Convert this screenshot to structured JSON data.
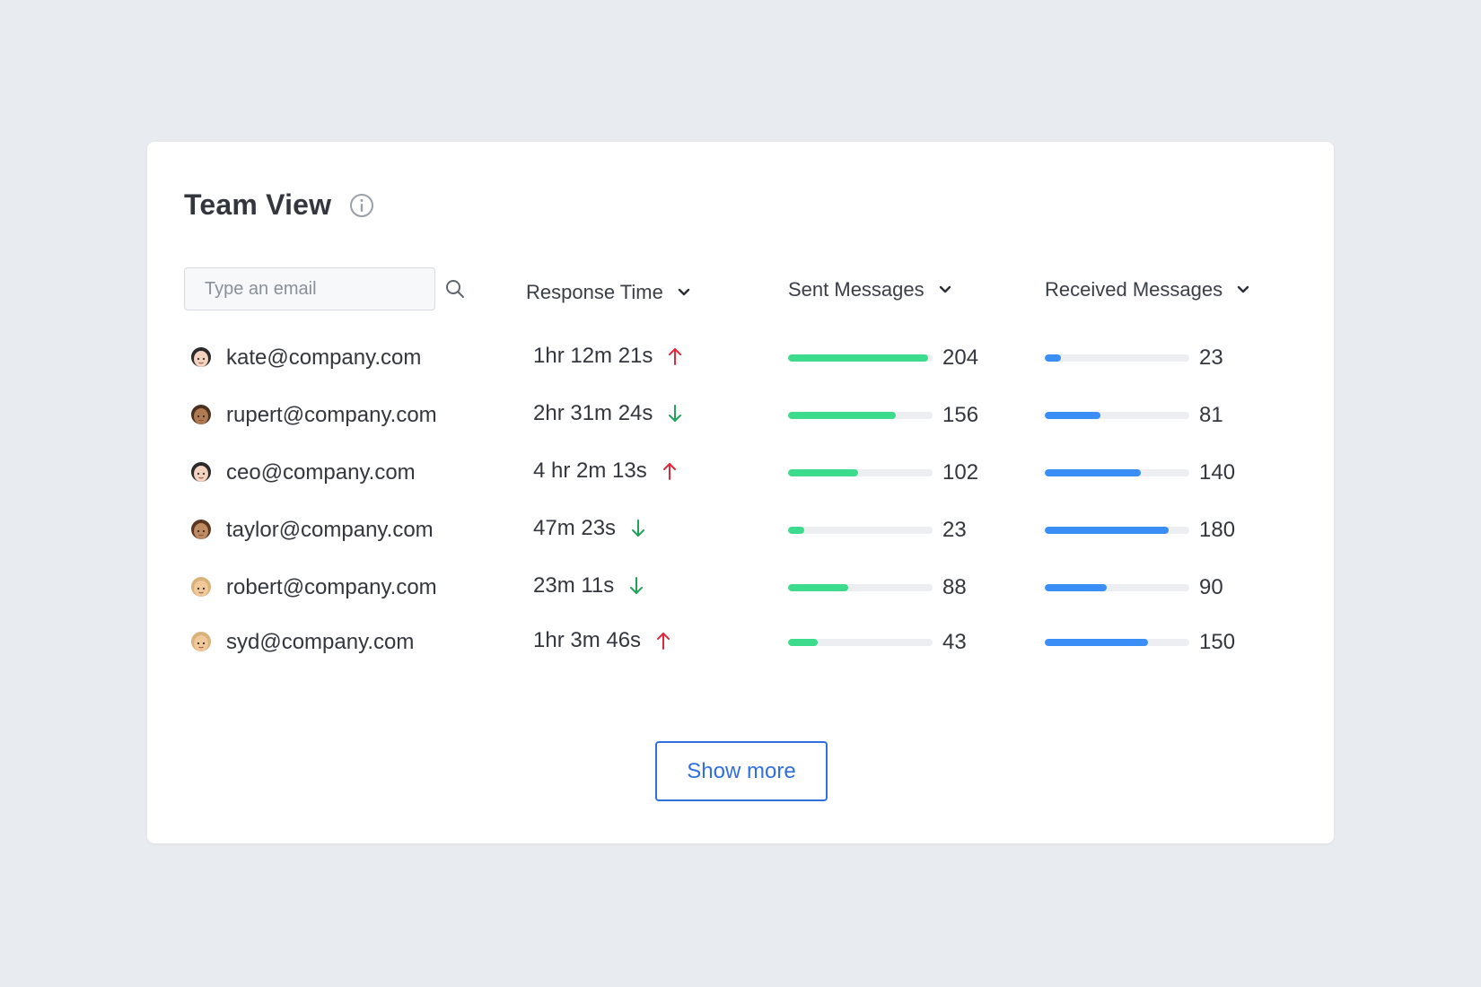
{
  "header": {
    "title": "Team View",
    "info_icon": "info-circle-icon"
  },
  "search": {
    "placeholder": "Type an email",
    "value": "",
    "icon": "search-icon"
  },
  "columns": [
    {
      "label": "Response Time",
      "icon": "chevron-down-icon"
    },
    {
      "label": "Sent Messages",
      "icon": "chevron-down-icon"
    },
    {
      "label": "Received Messages",
      "icon": "chevron-down-icon"
    }
  ],
  "bar_max": 210,
  "colors": {
    "sent_bar": "#3ddc8c",
    "received_bar": "#3b8ef5",
    "trend_up": "#e0283c",
    "trend_down": "#1fa35a",
    "link": "#2f6fe0"
  },
  "rows": [
    {
      "email": "kate@company.com",
      "avatar": "woman-avatar",
      "skin": "#f3d3bf",
      "hair": "#2a2a2a",
      "response_time": "1hr 12m 21s",
      "trend": "up",
      "sent": 204,
      "received": 23
    },
    {
      "email": "rupert@company.com",
      "avatar": "man-avatar",
      "skin": "#b07a52",
      "hair": "#4a3020",
      "response_time": "2hr 31m 24s",
      "trend": "down",
      "sent": 156,
      "received": 81
    },
    {
      "email": "ceo@company.com",
      "avatar": "woman-avatar",
      "skin": "#f3d3bf",
      "hair": "#2a2a2a",
      "response_time": "4 hr 2m 13s",
      "trend": "up",
      "sent": 102,
      "received": 140
    },
    {
      "email": "taylor@company.com",
      "avatar": "woman-avatar",
      "skin": "#c08a62",
      "hair": "#5a3520",
      "response_time": "47m 23s",
      "trend": "down",
      "sent": 23,
      "received": 180
    },
    {
      "email": "robert@company.com",
      "avatar": "man-avatar",
      "skin": "#f1c89a",
      "hair": "#d9b27a",
      "response_time": "23m 11s",
      "trend": "down",
      "sent": 88,
      "received": 90
    },
    {
      "email": "syd@company.com",
      "avatar": "woman-avatar",
      "skin": "#f1c89a",
      "hair": "#d9b27a",
      "response_time": "1hr 3m 46s",
      "trend": "up",
      "sent": 43,
      "received": 150
    }
  ],
  "footer": {
    "show_more_label": "Show more"
  }
}
